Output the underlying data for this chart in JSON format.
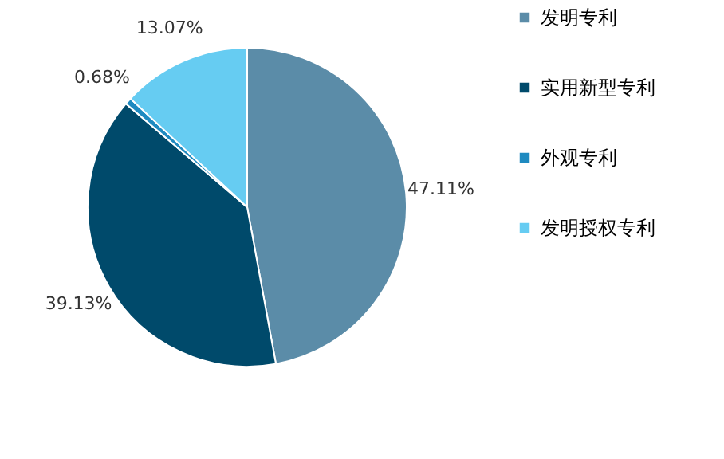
{
  "chart_data": {
    "type": "pie",
    "categories": [
      "发明专利",
      "实用新型专利",
      "外观专利",
      "发明授权专利"
    ],
    "values": [
      47.11,
      39.13,
      0.68,
      13.07
    ],
    "colors": [
      "#5b8ca8",
      "#004a6b",
      "#1f8ac0",
      "#66ccf2"
    ],
    "value_labels": [
      "47.11%",
      "39.13%",
      "0.68%",
      "13.07%"
    ],
    "legend": "right"
  }
}
